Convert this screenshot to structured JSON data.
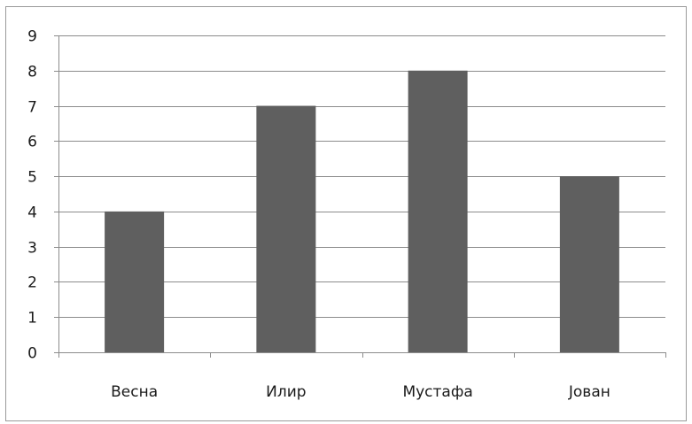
{
  "chart_data": {
    "type": "bar",
    "categories": [
      "Весна",
      "Илир",
      "Мустафа",
      "Јован"
    ],
    "values": [
      4,
      7,
      8,
      5
    ],
    "title": "",
    "xlabel": "",
    "ylabel": "",
    "ylim": [
      0,
      9
    ],
    "yticks": [
      "0",
      "1",
      "2",
      "3",
      "4",
      "5",
      "6",
      "7",
      "8",
      "9"
    ],
    "grid": true,
    "legend": "none",
    "bar_color": "#5f5f5f",
    "grid_color": "#8c8c8c"
  }
}
